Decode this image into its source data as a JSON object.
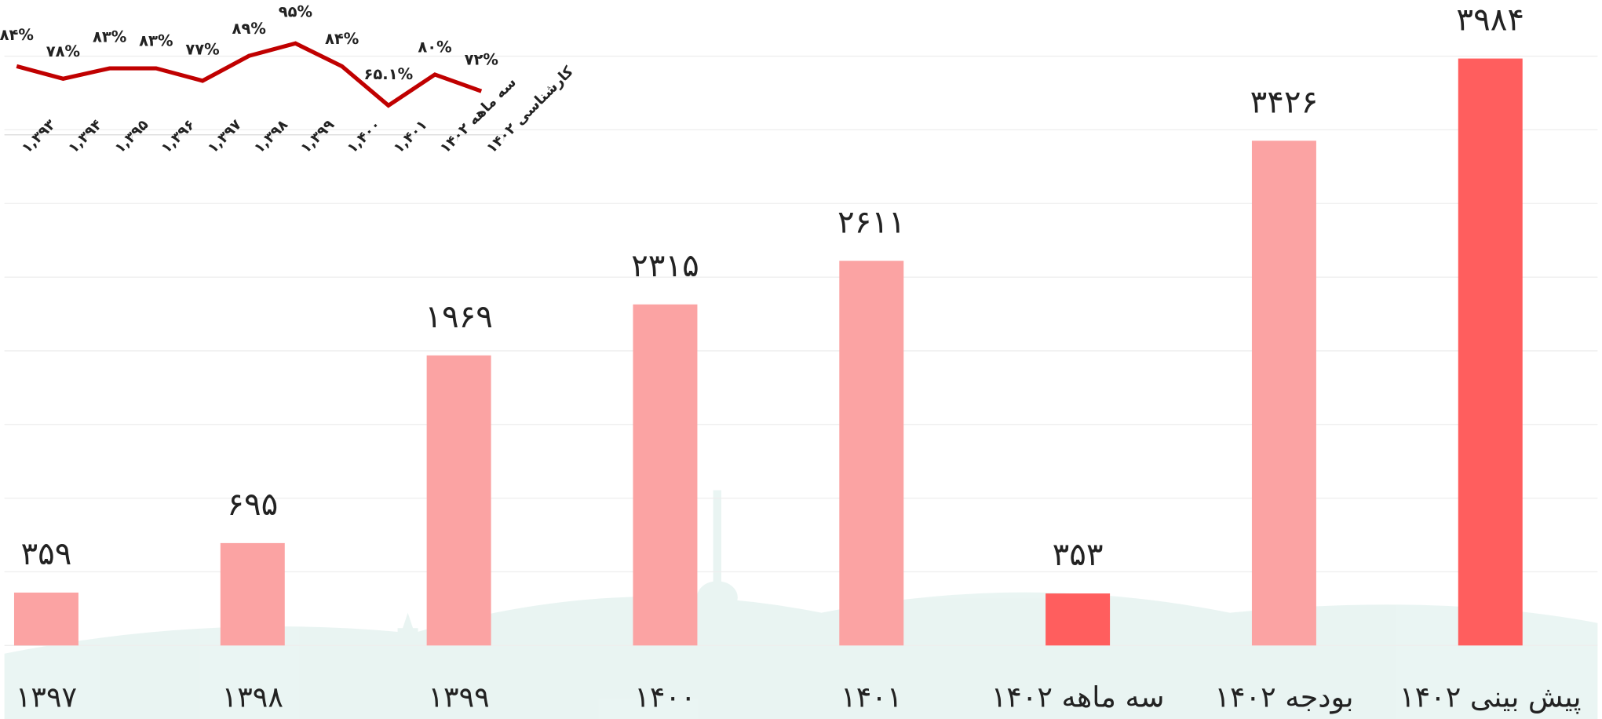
{
  "chart_data": [
    {
      "type": "bar",
      "categories": [
        "۱۳۹۷",
        "۱۳۹۸",
        "۱۳۹۹",
        "۱۴۰۰",
        "۱۴۰۱",
        "سه ماهه ۱۴۰۲",
        "بودجه ۱۴۰۲",
        "پیش بینی ۱۴۰۲"
      ],
      "values": [
        359,
        695,
        1969,
        2315,
        2611,
        353,
        3426,
        3984
      ],
      "value_labels": [
        "۳۵۹",
        "۶۹۵",
        "۱۹۶۹",
        "۲۳۱۵",
        "۲۶۱۱",
        "۳۵۳",
        "۳۴۲۶",
        "۳۹۸۴"
      ],
      "colors": [
        "#fba3a3",
        "#fba3a3",
        "#fba3a3",
        "#fba3a3",
        "#fba3a3",
        "#ff5e5e",
        "#fba3a3",
        "#ff5e5e"
      ],
      "ylim": [
        0,
        4000
      ],
      "yticks": [
        0,
        500,
        1000,
        1500,
        2000,
        2500,
        3000,
        3500,
        4000
      ],
      "grid": true
    },
    {
      "type": "line",
      "categories": [
        "۱,۳۹۳",
        "۱,۳۹۴",
        "۱,۳۹۵",
        "۱,۳۹۶",
        "۱,۳۹۷",
        "۱,۳۹۸",
        "۱,۳۹۹",
        "۱,۴۰۰",
        "۱,۴۰۱",
        "سه ماهه ۱۴۰۲",
        "کارشناسی ۱۴۰۲"
      ],
      "values": [
        84,
        78,
        83,
        83,
        77,
        89,
        95,
        84,
        65.1,
        80,
        72
      ],
      "value_labels": [
        "۸۴%",
        "۷۸%",
        "۸۳%",
        "۸۳%",
        "۷۷%",
        "۸۹%",
        "۹۵%",
        "۸۴%",
        "۶۵.۱%",
        "۸۰%",
        "۷۲%"
      ],
      "color": "#c00000",
      "ylim": [
        50,
        110
      ]
    }
  ]
}
